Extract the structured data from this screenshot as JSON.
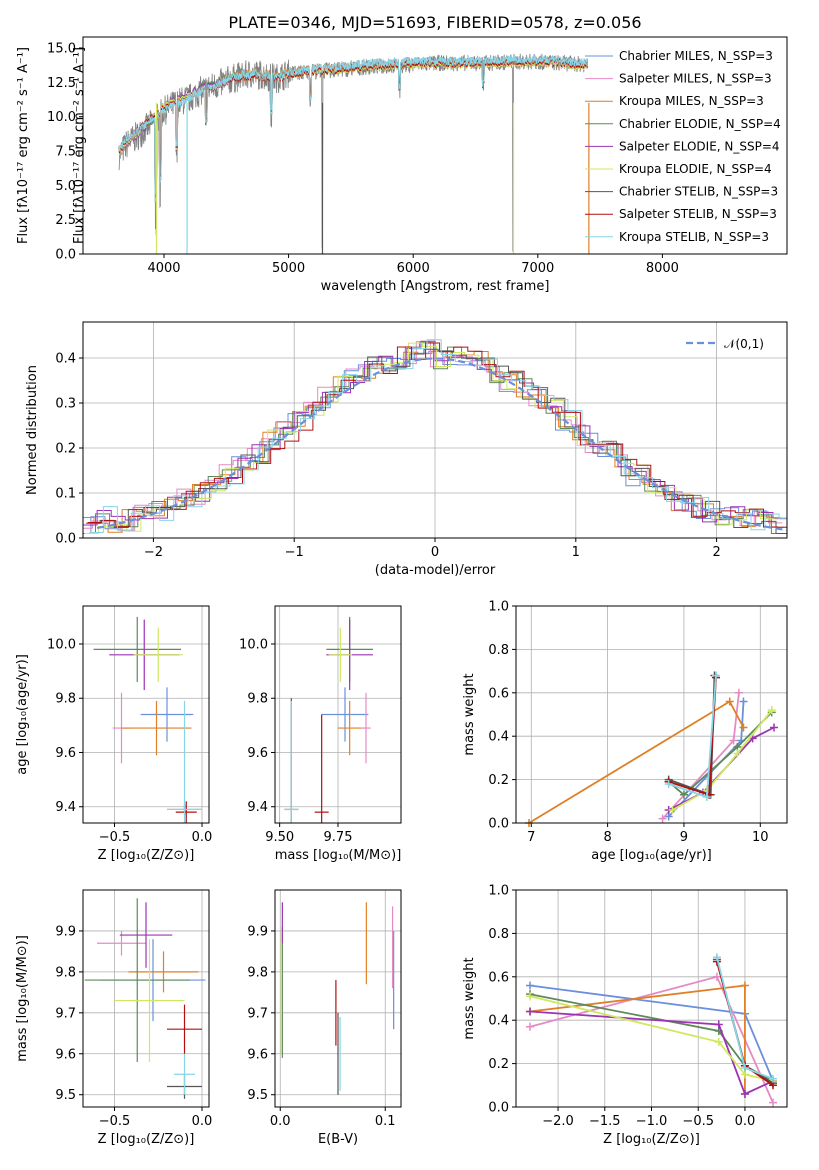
{
  "colors": {
    "chabrier_miles": "#6a8fdc",
    "salpeter_miles": "#e48bc4",
    "kroupa_miles": "#e07f25",
    "chabrier_elodie": "#5e8a57",
    "salpeter_elodie": "#9c34b3",
    "kroupa_elodie": "#cfe860",
    "chabrier_stelib": "#555555",
    "salpeter_stelib": "#b21010",
    "kroupa_stelib": "#86d6e6"
  },
  "chart_data": [
    {
      "id": "spectrum",
      "type": "line",
      "title": "PLATE=0346, MJD=51693, FIBERID=0578, z=0.056",
      "xlabel": "wavelength [Angstrom, rest frame]",
      "ylabel": "Flux [fλ10⁻¹⁷ erg cm⁻² s⁻¹ A⁻¹]",
      "xlim": [
        3350,
        9000
      ],
      "ylim": [
        0,
        15.8
      ],
      "xticks": [
        "4000",
        "5000",
        "6000",
        "7000",
        "8000"
      ],
      "yticks": [
        "0.0",
        "2.5",
        "5.0",
        "7.5",
        "10.0",
        "12.5",
        "15.0"
      ],
      "legend": "upper-right",
      "data_curve": {
        "color": "#808080",
        "x": [
          3640,
          3700,
          3800,
          3900,
          4000,
          4100,
          4200,
          4300,
          4400,
          4500,
          4600,
          4700,
          4800,
          4900,
          5000,
          5200,
          5400,
          5600,
          5800,
          6000,
          6200,
          6400,
          6600,
          6800,
          7000,
          7200,
          7400
        ],
        "y": [
          7.2,
          8.0,
          8.7,
          9.5,
          10.4,
          11.0,
          11.3,
          11.9,
          12.2,
          12.6,
          12.9,
          13.1,
          13.0,
          12.8,
          13.1,
          13.3,
          13.4,
          13.6,
          13.7,
          13.8,
          13.9,
          13.9,
          13.9,
          14.0,
          14.0,
          13.9,
          13.8
        ]
      },
      "series": [
        {
          "name": "Chabrier MILES, N_SSP=3",
          "key": "chabrier_miles"
        },
        {
          "name": "Salpeter MILES, N_SSP=3",
          "key": "salpeter_miles"
        },
        {
          "name": "Kroupa MILES, N_SSP=3",
          "key": "kroupa_miles"
        },
        {
          "name": "Chabrier ELODIE, N_SSP=4",
          "key": "chabrier_elodie"
        },
        {
          "name": "Salpeter ELODIE, N_SSP=4",
          "key": "salpeter_elodie"
        },
        {
          "name": "Kroupa ELODIE, N_SSP=4",
          "key": "kroupa_elodie"
        },
        {
          "name": "Chabrier STELIB, N_SSP=3",
          "key": "chabrier_stelib"
        },
        {
          "name": "Salpeter STELIB, N_SSP=3",
          "key": "salpeter_stelib"
        },
        {
          "name": "Kroupa STELIB, N_SSP=3",
          "key": "kroupa_stelib"
        }
      ],
      "model_x": [
        3640,
        3700,
        3800,
        3900,
        4000,
        4100,
        4200,
        4300,
        4400,
        4500,
        4600,
        4700,
        4800,
        4900,
        5000,
        5200,
        5400,
        5600,
        5800,
        6000,
        6200,
        6400,
        6600,
        6800,
        7000,
        7200,
        7400
      ],
      "model_y": [
        7.5,
        8.2,
        8.9,
        9.8,
        10.6,
        11.1,
        11.5,
        12.0,
        12.3,
        12.7,
        13.0,
        13.1,
        13.0,
        12.9,
        13.2,
        13.4,
        13.5,
        13.7,
        13.8,
        13.9,
        13.9,
        13.9,
        14.0,
        14.0,
        14.0,
        13.9,
        13.8
      ]
    },
    {
      "id": "residuals",
      "type": "line",
      "xlabel": "(data-model)/error",
      "ylabel": "Normed distribution",
      "xlim": [
        -2.5,
        2.5
      ],
      "ylim": [
        0,
        0.48
      ],
      "xticks": [
        "−2",
        "−1",
        "0",
        "1",
        "2"
      ],
      "yticks": [
        "0.0",
        "0.1",
        "0.2",
        "0.3",
        "0.4"
      ],
      "legend_label": "𝒩(0,1)",
      "normal_color": "#6a8fdc",
      "bins_x": [
        -2.5,
        -2.4,
        -2.3,
        -2.2,
        -2.1,
        -2.0,
        -1.9,
        -1.8,
        -1.7,
        -1.6,
        -1.5,
        -1.4,
        -1.3,
        -1.2,
        -1.1,
        -1.0,
        -0.9,
        -0.8,
        -0.7,
        -0.6,
        -0.5,
        -0.4,
        -0.3,
        -0.2,
        -0.1,
        0.0,
        0.1,
        0.2,
        0.3,
        0.4,
        0.5,
        0.6,
        0.7,
        0.8,
        0.9,
        1.0,
        1.1,
        1.2,
        1.3,
        1.4,
        1.5,
        1.6,
        1.7,
        1.8,
        1.9,
        2.0,
        2.1,
        2.2,
        2.3,
        2.4
      ],
      "hist_base": [
        0.025,
        0.05,
        0.03,
        0.04,
        0.05,
        0.06,
        0.07,
        0.09,
        0.1,
        0.12,
        0.14,
        0.17,
        0.19,
        0.22,
        0.24,
        0.26,
        0.28,
        0.31,
        0.34,
        0.36,
        0.38,
        0.39,
        0.4,
        0.41,
        0.42,
        0.4,
        0.41,
        0.4,
        0.39,
        0.37,
        0.35,
        0.33,
        0.31,
        0.29,
        0.26,
        0.23,
        0.21,
        0.19,
        0.16,
        0.14,
        0.12,
        0.1,
        0.08,
        0.07,
        0.06,
        0.05,
        0.045,
        0.04,
        0.035,
        0.03
      ]
    },
    {
      "id": "age-vs-Z",
      "type": "scatter",
      "xlabel": "Z [log₁₀(Z/Z⊙)]",
      "ylabel": "age  [log₁₀(age/yr)]",
      "xlim": [
        -0.68,
        0.04
      ],
      "ylim": [
        9.34,
        10.14
      ],
      "xticks": [
        "−0.5",
        "0.0"
      ],
      "xtick_values": [
        -0.5,
        0.0
      ],
      "yticks": [
        "9.4",
        "9.6",
        "9.8",
        "10.0"
      ],
      "ytick_values": [
        9.4,
        9.6,
        9.8,
        10.0
      ],
      "points": [
        {
          "key": "chabrier_miles",
          "x": -0.2,
          "y": 9.74,
          "xerr": 0.15,
          "yerr": 0.1
        },
        {
          "key": "salpeter_miles",
          "x": -0.46,
          "y": 9.69,
          "xerr": 0.05,
          "yerr": 0.13
        },
        {
          "key": "kroupa_miles",
          "x": -0.26,
          "y": 9.69,
          "xerr": 0.2,
          "yerr": 0.1
        },
        {
          "key": "chabrier_elodie",
          "x": -0.37,
          "y": 9.98,
          "xerr": 0.25,
          "yerr": 0.12
        },
        {
          "key": "salpeter_elodie",
          "x": -0.33,
          "y": 9.96,
          "xerr": 0.2,
          "yerr": 0.13
        },
        {
          "key": "kroupa_elodie",
          "x": -0.25,
          "y": 9.96,
          "xerr": 0.14,
          "yerr": 0.1
        },
        {
          "key": "chabrier_stelib",
          "x": -0.1,
          "y": 9.39,
          "xerr": 0.1,
          "yerr": 0.02
        },
        {
          "key": "salpeter_stelib",
          "x": -0.09,
          "y": 9.38,
          "xerr": 0.06,
          "yerr": 0.04
        },
        {
          "key": "kroupa_stelib",
          "x": -0.1,
          "y": 9.39,
          "xerr": 0.1,
          "yerr": 0.4
        }
      ]
    },
    {
      "id": "age-vs-mass",
      "type": "scatter",
      "xlabel": "mass [log₁₀(M/M⊙)]",
      "ylabel": "",
      "xlim": [
        9.48,
        10.02
      ],
      "ylim": [
        9.34,
        10.14
      ],
      "xticks": [
        "9.50",
        "9.75"
      ],
      "xtick_values": [
        9.5,
        9.75
      ],
      "yticks": [
        "9.4",
        "9.6",
        "9.8",
        "10.0"
      ],
      "ytick_values": [
        9.4,
        9.6,
        9.8,
        10.0
      ],
      "points": [
        {
          "key": "chabrier_miles",
          "x": 9.78,
          "y": 9.74,
          "xerr": 0.1,
          "yerr": 0.1
        },
        {
          "key": "salpeter_miles",
          "x": 9.87,
          "y": 9.69,
          "xerr": 0.02,
          "yerr": 0.13
        },
        {
          "key": "kroupa_miles",
          "x": 9.8,
          "y": 9.69,
          "xerr": 0.05,
          "yerr": 0.1
        },
        {
          "key": "chabrier_elodie",
          "x": 9.8,
          "y": 9.98,
          "xerr": 0.1,
          "yerr": 0.12
        },
        {
          "key": "salpeter_elodie",
          "x": 9.8,
          "y": 9.96,
          "xerr": 0.1,
          "yerr": 0.13
        },
        {
          "key": "kroupa_elodie",
          "x": 9.76,
          "y": 9.96,
          "xerr": 0.05,
          "yerr": 0.1
        },
        {
          "key": "chabrier_stelib",
          "x": 9.55,
          "y": 9.39,
          "xerr": 0.03,
          "yerr": 0.41
        },
        {
          "key": "salpeter_stelib",
          "x": 9.68,
          "y": 9.38,
          "xerr": 0.03,
          "yerr": 0.36
        },
        {
          "key": "kroupa_stelib",
          "x": 9.55,
          "y": 9.39,
          "xerr": 0.03,
          "yerr": 0.4
        }
      ]
    },
    {
      "id": "weight-vs-age",
      "type": "line",
      "xlabel": "age  [log₁₀(age/yr)]",
      "ylabel": "mass weight",
      "xlim": [
        6.8,
        10.35
      ],
      "ylim": [
        0,
        1.0
      ],
      "xticks": [
        "7",
        "8",
        "9",
        "10"
      ],
      "xtick_values": [
        7,
        8,
        9,
        10
      ],
      "yticks": [
        "0.0",
        "0.2",
        "0.4",
        "0.6",
        "0.8",
        "1.0"
      ],
      "ytick_values": [
        0,
        0.2,
        0.4,
        0.6,
        0.8,
        1.0
      ],
      "series": [
        {
          "key": "chabrier_miles",
          "x": [
            8.8,
            9.75,
            9.78
          ],
          "y": [
            0.03,
            0.38,
            0.56
          ]
        },
        {
          "key": "salpeter_miles",
          "x": [
            8.72,
            9.65,
            9.72
          ],
          "y": [
            0.02,
            0.38,
            0.6
          ]
        },
        {
          "key": "kroupa_miles",
          "x": [
            6.97,
            9.6,
            9.78
          ],
          "y": [
            0.0,
            0.56,
            0.44
          ]
        },
        {
          "key": "chabrier_elodie",
          "x": [
            8.8,
            9.0,
            9.7,
            10.15
          ],
          "y": [
            0.19,
            0.13,
            0.35,
            0.51
          ]
        },
        {
          "key": "salpeter_elodie",
          "x": [
            8.8,
            9.25,
            9.9,
            10.18
          ],
          "y": [
            0.06,
            0.14,
            0.39,
            0.44
          ]
        },
        {
          "key": "kroupa_elodie",
          "x": [
            8.85,
            9.3,
            9.7,
            10.15
          ],
          "y": [
            0.06,
            0.15,
            0.32,
            0.52
          ]
        },
        {
          "key": "chabrier_stelib",
          "x": [
            8.8,
            9.35,
            9.4
          ],
          "y": [
            0.2,
            0.13,
            0.68
          ]
        },
        {
          "key": "salpeter_stelib",
          "x": [
            8.8,
            9.33,
            9.42
          ],
          "y": [
            0.19,
            0.13,
            0.67
          ]
        },
        {
          "key": "kroupa_stelib",
          "x": [
            8.8,
            9.3,
            9.42
          ],
          "y": [
            0.18,
            0.12,
            0.68
          ]
        }
      ]
    },
    {
      "id": "mass-vs-Z",
      "type": "scatter",
      "xlabel": "Z [log₁₀(Z/Z⊙)]",
      "ylabel": "mass [log₁₀(M/M⊙)]",
      "xlim": [
        -0.68,
        0.04
      ],
      "ylim": [
        9.47,
        10.0
      ],
      "xticks": [
        "−0.5",
        "0.0"
      ],
      "xtick_values": [
        -0.5,
        0.0
      ],
      "yticks": [
        "9.5",
        "9.6",
        "9.7",
        "9.8",
        "9.9"
      ],
      "ytick_values": [
        9.5,
        9.6,
        9.7,
        9.8,
        9.9
      ],
      "points": [
        {
          "key": "chabrier_miles",
          "x": -0.28,
          "y": 9.78,
          "xerr": 0.3,
          "yerr": 0.1
        },
        {
          "key": "salpeter_miles",
          "x": -0.46,
          "y": 9.87,
          "xerr": 0.14,
          "yerr": 0.03
        },
        {
          "key": "kroupa_miles",
          "x": -0.22,
          "y": 9.8,
          "xerr": 0.2,
          "yerr": 0.05
        },
        {
          "key": "chabrier_elodie",
          "x": -0.37,
          "y": 9.78,
          "xerr": 0.3,
          "yerr": 0.2
        },
        {
          "key": "salpeter_elodie",
          "x": -0.32,
          "y": 9.89,
          "xerr": 0.15,
          "yerr": 0.08
        },
        {
          "key": "kroupa_elodie",
          "x": -0.3,
          "y": 9.73,
          "xerr": 0.2,
          "yerr": 0.15
        },
        {
          "key": "chabrier_stelib",
          "x": -0.1,
          "y": 9.52,
          "xerr": 0.1,
          "yerr": 0.03
        },
        {
          "key": "salpeter_stelib",
          "x": -0.1,
          "y": 9.66,
          "xerr": 0.1,
          "yerr": 0.06
        },
        {
          "key": "kroupa_stelib",
          "x": -0.1,
          "y": 9.55,
          "xerr": 0.06,
          "yerr": 0.05
        }
      ]
    },
    {
      "id": "mass-vs-ebv",
      "type": "scatter",
      "xlabel": "E(B-V)",
      "ylabel": "",
      "xlim": [
        -0.005,
        0.115
      ],
      "ylim": [
        9.47,
        10.0
      ],
      "xticks": [
        "0.0",
        "0.1"
      ],
      "xtick_values": [
        0.0,
        0.1
      ],
      "yticks": [
        "9.5",
        "9.6",
        "9.7",
        "9.8",
        "9.9"
      ],
      "ytick_values": [
        9.5,
        9.6,
        9.7,
        9.8,
        9.9
      ],
      "points": [
        {
          "key": "chabrier_miles",
          "x": 0.108,
          "y": 9.78,
          "xerr": 0,
          "yerr": 0.12
        },
        {
          "key": "salpeter_miles",
          "x": 0.107,
          "y": 9.86,
          "xerr": 0,
          "yerr": 0.1
        },
        {
          "key": "kroupa_miles",
          "x": 0.082,
          "y": 9.87,
          "xerr": 0,
          "yerr": 0.1
        },
        {
          "key": "chabrier_elodie",
          "x": 0.002,
          "y": 9.75,
          "xerr": 0,
          "yerr": 0.16
        },
        {
          "key": "salpeter_elodie",
          "x": 0.002,
          "y": 9.92,
          "xerr": 0,
          "yerr": 0.05
        },
        {
          "key": "kroupa_elodie",
          "x": 0.001,
          "y": 9.75,
          "xerr": 0,
          "yerr": 0.15
        },
        {
          "key": "chabrier_stelib",
          "x": 0.055,
          "y": 9.6,
          "xerr": 0,
          "yerr": 0.1
        },
        {
          "key": "salpeter_stelib",
          "x": 0.053,
          "y": 9.7,
          "xerr": 0,
          "yerr": 0.08
        },
        {
          "key": "kroupa_stelib",
          "x": 0.057,
          "y": 9.6,
          "xerr": 0,
          "yerr": 0.09
        }
      ]
    },
    {
      "id": "weight-vs-Z",
      "type": "line",
      "xlabel": "Z [log₁₀(Z/Z⊙)]",
      "ylabel": "mass weight",
      "xlim": [
        -2.45,
        0.45
      ],
      "ylim": [
        0,
        1.0
      ],
      "xticks": [
        "−2.0",
        "−1.5",
        "−1.0",
        "−0.5",
        "0.0"
      ],
      "xtick_values": [
        -2.0,
        -1.5,
        -1.0,
        -0.5,
        0.0
      ],
      "yticks": [
        "0.0",
        "0.2",
        "0.4",
        "0.6",
        "0.8",
        "1.0"
      ],
      "ytick_values": [
        0,
        0.2,
        0.4,
        0.6,
        0.8,
        1.0
      ],
      "series": [
        {
          "key": "chabrier_miles",
          "x": [
            -2.3,
            0.0,
            0.3
          ],
          "y": [
            0.56,
            0.43,
            0.12
          ]
        },
        {
          "key": "salpeter_miles",
          "x": [
            -2.3,
            -0.3,
            0.3
          ],
          "y": [
            0.37,
            0.6,
            0.02
          ]
        },
        {
          "key": "kroupa_miles",
          "x": [
            -2.3,
            0.0,
            0.0
          ],
          "y": [
            0.44,
            0.56,
            0.06
          ]
        },
        {
          "key": "chabrier_elodie",
          "x": [
            -2.3,
            -0.28,
            0.0,
            0.3
          ],
          "y": [
            0.52,
            0.35,
            0.19,
            0.12
          ]
        },
        {
          "key": "salpeter_elodie",
          "x": [
            -2.3,
            -0.28,
            0.0,
            0.3
          ],
          "y": [
            0.44,
            0.38,
            0.06,
            0.12
          ]
        },
        {
          "key": "kroupa_elodie",
          "x": [
            -2.3,
            -0.28,
            0.0,
            0.3
          ],
          "y": [
            0.51,
            0.3,
            0.15,
            0.12
          ]
        },
        {
          "key": "chabrier_stelib",
          "x": [
            -0.3,
            0.0,
            0.3
          ],
          "y": [
            0.68,
            0.19,
            0.11
          ]
        },
        {
          "key": "salpeter_stelib",
          "x": [
            -0.3,
            0.0,
            0.3
          ],
          "y": [
            0.67,
            0.19,
            0.1
          ]
        },
        {
          "key": "kroupa_stelib",
          "x": [
            -0.3,
            0.0,
            0.3
          ],
          "y": [
            0.69,
            0.18,
            0.13
          ]
        }
      ]
    }
  ]
}
